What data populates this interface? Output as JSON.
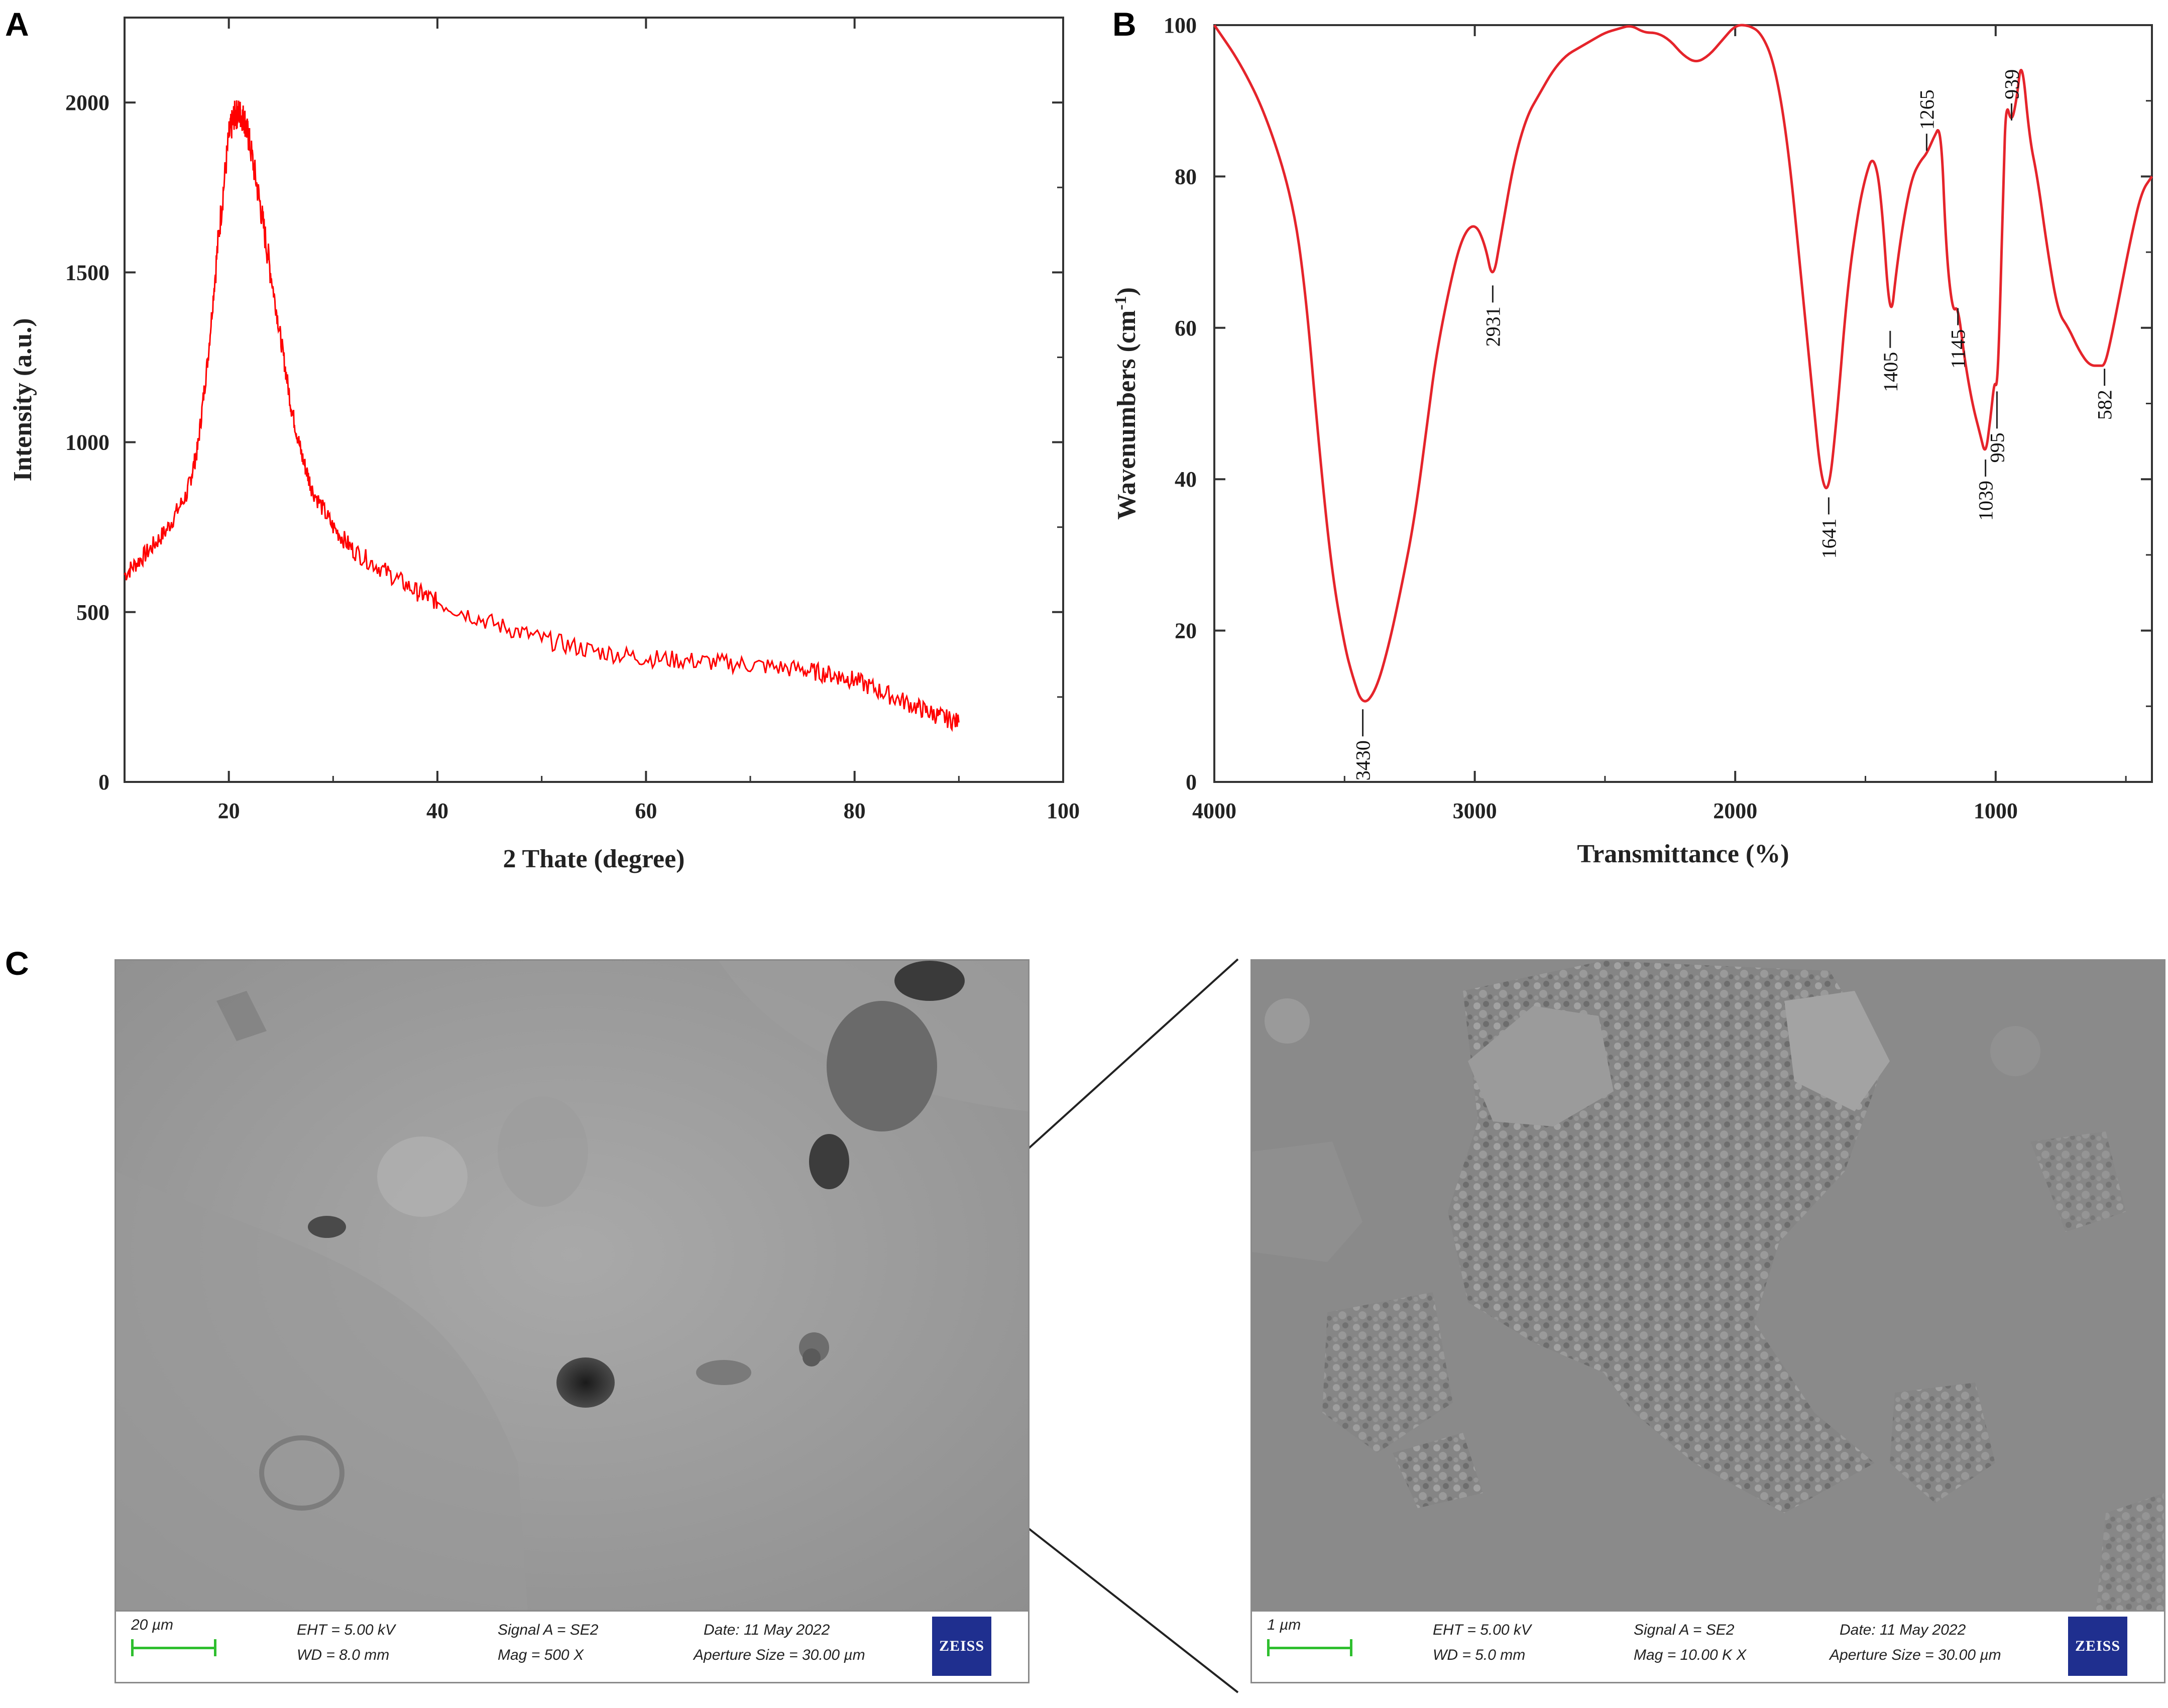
{
  "panels": {
    "a": "A",
    "b": "B",
    "c": "C"
  },
  "chart_data": [
    {
      "type": "line",
      "title": "",
      "xlabel": "2 Thate (degree)",
      "ylabel": "Intensity (a.u.)",
      "xlim": [
        10,
        100
      ],
      "ylim": [
        0,
        2250
      ],
      "xticks": [
        "20",
        "40",
        "60",
        "80",
        "100"
      ],
      "yticks": [
        "0",
        "500",
        "1000",
        "1500",
        "2000"
      ],
      "color": "#ff0000",
      "grid": false,
      "series": [
        {
          "x": [
            10,
            12,
            14,
            16,
            17,
            18,
            19,
            20,
            20.5,
            21,
            21.5,
            22,
            23,
            24,
            25,
            26,
            27,
            28,
            30,
            32,
            35,
            38,
            40,
            45,
            50,
            55,
            60,
            65,
            70,
            75,
            78,
            80,
            83,
            86,
            88,
            90
          ],
          "y": [
            610,
            670,
            740,
            850,
            980,
            1250,
            1600,
            1900,
            1960,
            1970,
            1950,
            1880,
            1700,
            1500,
            1300,
            1100,
            960,
            860,
            750,
            680,
            620,
            560,
            530,
            470,
            420,
            385,
            365,
            355,
            345,
            330,
            315,
            300,
            260,
            220,
            195,
            175
          ]
        }
      ]
    },
    {
      "type": "line",
      "title": "",
      "xlabel": "Transmittance (%)",
      "ylabel": "Wavenumbers (cm-1)",
      "ylabel_main": "Wavenumbers (cm",
      "ylabel_sup": "-1",
      "ylabel_end": ")",
      "xlim": [
        4000,
        400
      ],
      "ylim": [
        0,
        100
      ],
      "xticks": [
        "4000",
        "3000",
        "2000",
        "1000"
      ],
      "yticks": [
        "0",
        "20",
        "40",
        "60",
        "80",
        "100"
      ],
      "color": "#e5242b",
      "grid": false,
      "series": [
        {
          "x": [
            4000,
            3900,
            3800,
            3700,
            3650,
            3600,
            3550,
            3500,
            3470,
            3430,
            3380,
            3330,
            3280,
            3230,
            3180,
            3150,
            3100,
            3050,
            3000,
            2960,
            2931,
            2900,
            2850,
            2800,
            2750,
            2700,
            2650,
            2600,
            2550,
            2500,
            2450,
            2400,
            2350,
            2300,
            2250,
            2200,
            2150,
            2100,
            2050,
            2000,
            1950,
            1900,
            1850,
            1800,
            1750,
            1700,
            1670,
            1641,
            1610,
            1570,
            1530,
            1500,
            1470,
            1440,
            1405,
            1380,
            1350,
            1320,
            1290,
            1265,
            1240,
            1210,
            1190,
            1165,
            1145,
            1120,
            1090,
            1060,
            1039,
            1020,
            1005,
            995,
            985,
            970,
            960,
            940,
            920,
            900,
            870,
            840,
            800,
            760,
            720,
            680,
            640,
            600,
            582,
            560,
            520,
            480,
            440,
            400
          ],
          "y": [
            100,
            95,
            88,
            77,
            65,
            45,
            28,
            18,
            14,
            10,
            12,
            18,
            26,
            35,
            48,
            56,
            65,
            72,
            74,
            71,
            66,
            72,
            82,
            88,
            91,
            94,
            96,
            97,
            98,
            99,
            99.5,
            100,
            99,
            99,
            98,
            96,
            95,
            96,
            98,
            100,
            100,
            99,
            95,
            85,
            68,
            50,
            40,
            38,
            48,
            65,
            75,
            80,
            83,
            78,
            60,
            68,
            75,
            80,
            82,
            83,
            85,
            87,
            70,
            62,
            63,
            56,
            50,
            46,
            43,
            48,
            53,
            52,
            60,
            80,
            90,
            87,
            90,
            96,
            85,
            80,
            70,
            62,
            60,
            57,
            55,
            55,
            55,
            58,
            65,
            72,
            78,
            80
          ]
        }
      ],
      "annotations": [
        {
          "label": "3430",
          "x": 3430,
          "y": 10
        },
        {
          "label": "2931",
          "x": 2931,
          "y": 66
        },
        {
          "label": "1641",
          "x": 1641,
          "y": 38
        },
        {
          "label": "1405",
          "x": 1405,
          "y": 60
        },
        {
          "label": "1265",
          "x": 1265,
          "y": 83
        },
        {
          "label": "1145",
          "x": 1145,
          "y": 63
        },
        {
          "label": "1039",
          "x": 1039,
          "y": 43
        },
        {
          "label": "995",
          "x": 995,
          "y": 52
        },
        {
          "label": "939",
          "x": 939,
          "y": 87
        },
        {
          "label": "582",
          "x": 582,
          "y": 55
        }
      ]
    }
  ],
  "sem": {
    "left": {
      "scale": "20 µm",
      "eht": "EHT =  5.00 kV",
      "wd": "WD =  8.0 mm",
      "signal": "Signal A = SE2",
      "mag": "Mag =     500 X",
      "date": "Date: 11 May 2022",
      "aperture": "Aperture Size = 30.00 µm",
      "logo": "ZEISS"
    },
    "right": {
      "scale": "1 µm",
      "eht": "EHT =  5.00 kV",
      "wd": "WD =  5.0 mm",
      "signal": "Signal A = SE2",
      "mag": "Mag =    10.00 K X",
      "date": "Date: 11 May 2022",
      "aperture": "Aperture Size = 30.00 µm",
      "logo": "ZEISS"
    }
  }
}
